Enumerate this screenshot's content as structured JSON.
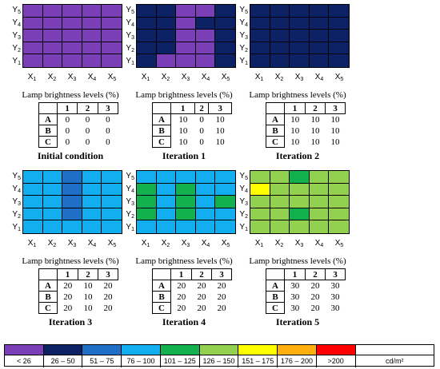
{
  "colors": {
    "purple": "#7a3fb7",
    "navy": "#0d2165",
    "blue": "#1f6fc7",
    "lightblue": "#12aef0",
    "green": "#13b050",
    "lightgreen": "#92d050",
    "yellow": "#ffff00",
    "orange": "#ffb00f",
    "red": "#ff0000",
    "white": "#ffffff"
  },
  "y_labels": [
    "5",
    "4",
    "3",
    "2",
    "1"
  ],
  "x_labels": [
    "1",
    "2",
    "3",
    "4",
    "5"
  ],
  "axis_letters": {
    "y": "Y",
    "x": "X"
  },
  "table_header": {
    "title": "Lamp brightness levels (%)",
    "cols": [
      "1",
      "2",
      "3"
    ],
    "rows": [
      "A",
      "B",
      "C"
    ]
  },
  "panels": [
    {
      "caption": "Initial condition",
      "grid": [
        [
          "purple",
          "purple",
          "purple",
          "purple",
          "purple"
        ],
        [
          "purple",
          "purple",
          "purple",
          "purple",
          "purple"
        ],
        [
          "purple",
          "purple",
          "purple",
          "purple",
          "purple"
        ],
        [
          "purple",
          "purple",
          "purple",
          "purple",
          "purple"
        ],
        [
          "purple",
          "purple",
          "purple",
          "purple",
          "purple"
        ]
      ],
      "table": [
        [
          "0",
          "0",
          "0"
        ],
        [
          "0",
          "0",
          "0"
        ],
        [
          "0",
          "0",
          "0"
        ]
      ]
    },
    {
      "caption": "Iteration 1",
      "grid": [
        [
          "navy",
          "navy",
          "purple",
          "purple",
          "navy"
        ],
        [
          "navy",
          "navy",
          "purple",
          "navy",
          "navy"
        ],
        [
          "navy",
          "navy",
          "purple",
          "purple",
          "navy"
        ],
        [
          "navy",
          "navy",
          "purple",
          "purple",
          "navy"
        ],
        [
          "navy",
          "purple",
          "purple",
          "purple",
          "navy"
        ]
      ],
      "table": [
        [
          "10",
          "0",
          "10"
        ],
        [
          "10",
          "0",
          "10"
        ],
        [
          "10",
          "0",
          "10"
        ]
      ]
    },
    {
      "caption": "Iteration 2",
      "grid": [
        [
          "navy",
          "navy",
          "navy",
          "navy",
          "navy"
        ],
        [
          "navy",
          "navy",
          "navy",
          "navy",
          "navy"
        ],
        [
          "navy",
          "navy",
          "navy",
          "navy",
          "navy"
        ],
        [
          "navy",
          "navy",
          "navy",
          "navy",
          "navy"
        ],
        [
          "navy",
          "navy",
          "navy",
          "navy",
          "navy"
        ]
      ],
      "table": [
        [
          "10",
          "10",
          "10"
        ],
        [
          "10",
          "10",
          "10"
        ],
        [
          "10",
          "10",
          "10"
        ]
      ]
    },
    {
      "caption": "Iteration 3",
      "grid": [
        [
          "lightblue",
          "lightblue",
          "blue",
          "lightblue",
          "lightblue"
        ],
        [
          "lightblue",
          "lightblue",
          "blue",
          "lightblue",
          "lightblue"
        ],
        [
          "lightblue",
          "lightblue",
          "blue",
          "lightblue",
          "lightblue"
        ],
        [
          "lightblue",
          "lightblue",
          "blue",
          "lightblue",
          "lightblue"
        ],
        [
          "lightblue",
          "lightblue",
          "lightblue",
          "lightblue",
          "lightblue"
        ]
      ],
      "table": [
        [
          "20",
          "10",
          "20"
        ],
        [
          "20",
          "10",
          "20"
        ],
        [
          "20",
          "10",
          "20"
        ]
      ]
    },
    {
      "caption": "Iteration 4",
      "grid": [
        [
          "lightblue",
          "lightblue",
          "lightblue",
          "lightblue",
          "lightblue"
        ],
        [
          "green",
          "lightblue",
          "green",
          "lightblue",
          "lightblue"
        ],
        [
          "green",
          "lightblue",
          "green",
          "lightblue",
          "green"
        ],
        [
          "green",
          "lightblue",
          "green",
          "lightblue",
          "lightblue"
        ],
        [
          "lightblue",
          "lightblue",
          "lightblue",
          "lightblue",
          "lightblue"
        ]
      ],
      "table": [
        [
          "20",
          "20",
          "20"
        ],
        [
          "20",
          "20",
          "20"
        ],
        [
          "20",
          "20",
          "20"
        ]
      ]
    },
    {
      "caption": "Iteration 5",
      "grid": [
        [
          "lightgreen",
          "lightgreen",
          "green",
          "lightgreen",
          "lightgreen"
        ],
        [
          "yellow",
          "lightgreen",
          "lightgreen",
          "lightgreen",
          "lightgreen"
        ],
        [
          "lightgreen",
          "lightgreen",
          "lightgreen",
          "lightgreen",
          "lightgreen"
        ],
        [
          "lightgreen",
          "lightgreen",
          "green",
          "lightgreen",
          "lightgreen"
        ],
        [
          "lightgreen",
          "lightgreen",
          "lightgreen",
          "lightgreen",
          "lightgreen"
        ]
      ],
      "table": [
        [
          "30",
          "20",
          "30"
        ],
        [
          "30",
          "20",
          "30"
        ],
        [
          "30",
          "20",
          "30"
        ]
      ]
    }
  ],
  "legend": {
    "items": [
      {
        "color": "purple",
        "label": "< 26"
      },
      {
        "color": "navy",
        "label": "26 – 50"
      },
      {
        "color": "blue",
        "label": "51 – 75"
      },
      {
        "color": "lightblue",
        "label": "76 – 100"
      },
      {
        "color": "green",
        "label": "101 – 125"
      },
      {
        "color": "lightgreen",
        "label": "126 – 150"
      },
      {
        "color": "yellow",
        "label": "151 – 175"
      },
      {
        "color": "orange",
        "label": "176 – 200"
      },
      {
        "color": "red",
        "label": ">200"
      },
      {
        "color": "white",
        "label": "cd/m²"
      }
    ]
  }
}
